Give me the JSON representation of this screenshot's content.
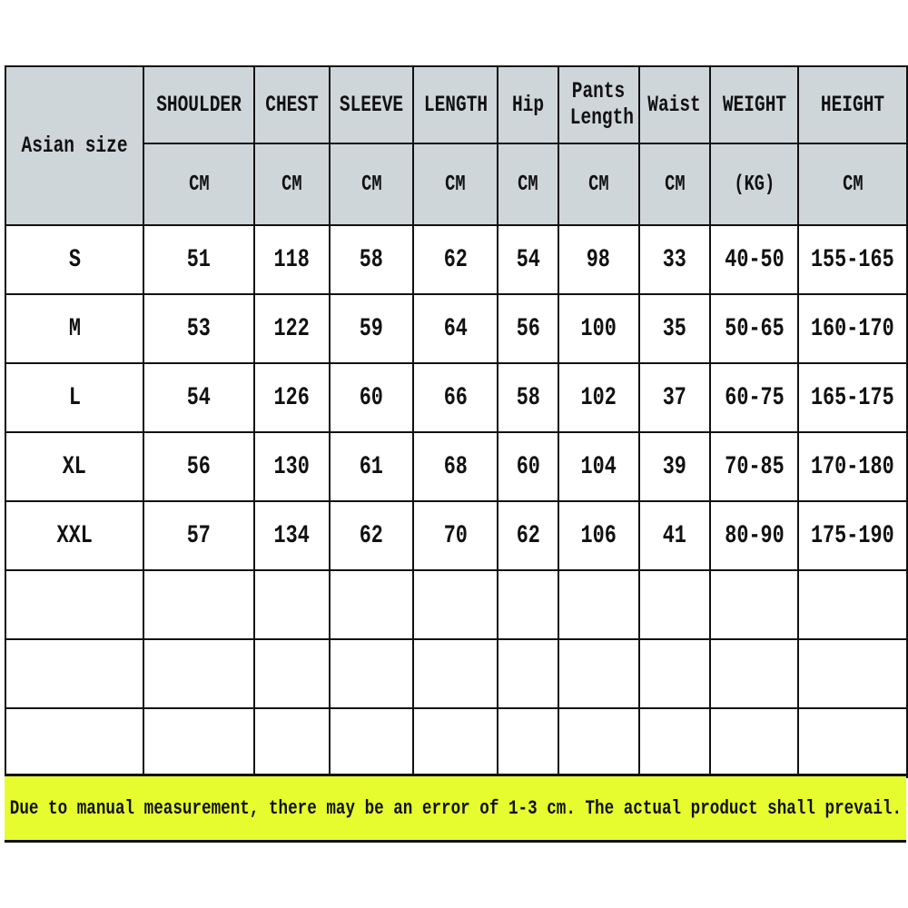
{
  "header": {
    "size_label": "Asian size",
    "columns": [
      "SHOULDER",
      "CHEST",
      "SLEEVE",
      "LENGTH",
      "Hip",
      "Pants Length",
      "Waist",
      "WEIGHT",
      "HEIGHT"
    ],
    "units": [
      "CM",
      "CM",
      "CM",
      "CM",
      "CM",
      "CM",
      "CM",
      "(KG)",
      "CM"
    ]
  },
  "rows": [
    {
      "size": "S",
      "values": [
        "51",
        "118",
        "58",
        "62",
        "54",
        "98",
        "33",
        "40-50",
        "155-165"
      ]
    },
    {
      "size": "M",
      "values": [
        "53",
        "122",
        "59",
        "64",
        "56",
        "100",
        "35",
        "50-65",
        "160-170"
      ]
    },
    {
      "size": "L",
      "values": [
        "54",
        "126",
        "60",
        "66",
        "58",
        "102",
        "37",
        "60-75",
        "165-175"
      ]
    },
    {
      "size": "XL",
      "values": [
        "56",
        "130",
        "61",
        "68",
        "60",
        "104",
        "39",
        "70-85",
        "170-180"
      ]
    },
    {
      "size": "XXL",
      "values": [
        "57",
        "134",
        "62",
        "70",
        "62",
        "106",
        "41",
        "80-90",
        "175-190"
      ]
    }
  ],
  "empty_rows": 3,
  "note": "Due to manual measurement, there may be an error of 1-3 cm. The actual product shall prevail.",
  "colors": {
    "header_bg": "#cfd6da",
    "note_bg": "#e6fc2e"
  }
}
